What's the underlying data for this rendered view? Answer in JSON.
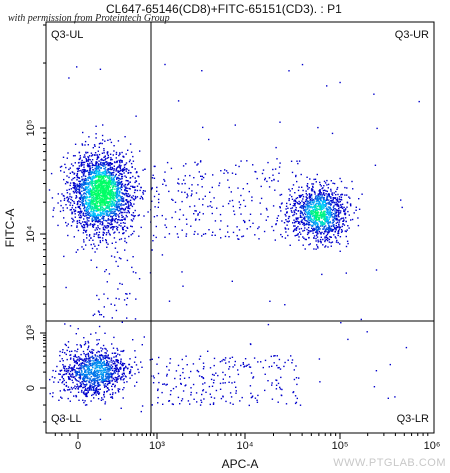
{
  "title": "CL647-65146(CD8)+FITC-65151(CD3). : P1",
  "credit": "with permission from Proteintech Group",
  "watermark": "WWW.PTGLAB.COM",
  "chart_data": {
    "type": "scatter",
    "xlabel": "APC-A",
    "ylabel": "FITC-A",
    "x_ticks": [
      "0",
      "10³",
      "10⁴",
      "10⁵",
      "10⁶"
    ],
    "y_ticks": [
      "0",
      "10³",
      "10⁴",
      "10⁵"
    ],
    "x_scale": "biexponential",
    "y_scale": "biexponential",
    "quadrant_gate": {
      "x": 900,
      "y": 1000
    },
    "quadrants": [
      "Q3-UL",
      "Q3-UR",
      "Q3-LL",
      "Q3-LR"
    ],
    "populations": [
      {
        "name": "Q3-UL cluster",
        "center": [
          100,
          25000
        ],
        "count": 2200
      },
      {
        "name": "Q3-UR cluster",
        "center": [
          60000,
          16000
        ],
        "count": 1100
      },
      {
        "name": "Q3-LL cluster",
        "center": [
          60,
          100
        ],
        "count": 1000
      }
    ],
    "colors": {
      "low": "#0000cc",
      "mid": "#00c8ff",
      "high": "#00ff66"
    },
    "grid": false
  }
}
